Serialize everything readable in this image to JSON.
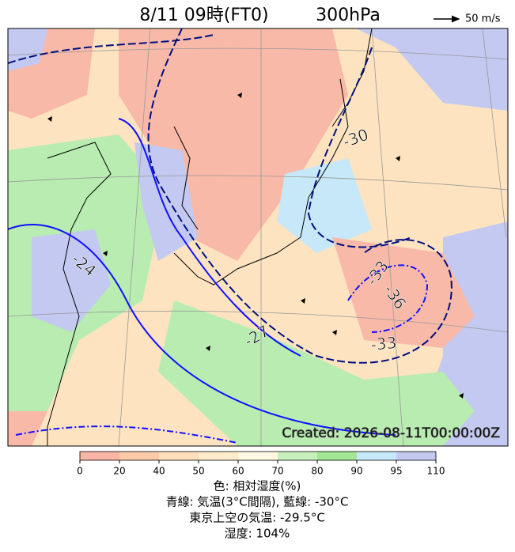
{
  "header": {
    "title": "8/11 09時(FT0)",
    "level": "300hPa",
    "wind_scale": "50 m/s"
  },
  "map": {
    "contour_labels": [
      "-30",
      "-33",
      "-36",
      "-33",
      "-27",
      "-24"
    ],
    "created": "Created: 2026-08-11T00:00:00Z"
  },
  "colorbar": {
    "ticks": [
      0,
      20,
      40,
      50,
      60,
      70,
      80,
      90,
      95,
      110
    ],
    "colors": [
      "#f9b5a6",
      "#fbcaa9",
      "#fde0bb",
      "#feebcb",
      "#fff8e2",
      "#c9f0bc",
      "#a3e693",
      "#c6e8f8",
      "#c3c9f1"
    ]
  },
  "footer": {
    "lines": [
      "色: 相対湿度(%)",
      "青線: 気温(3°C間隔), 藍線: -30°C",
      "東京上空の気温: -29.5°C",
      "湿度: 104%"
    ]
  }
}
